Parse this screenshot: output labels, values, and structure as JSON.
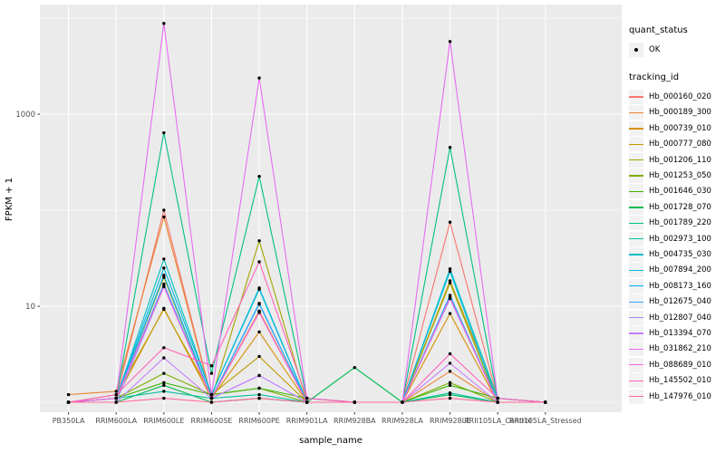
{
  "axes": {
    "x_title": "sample_name",
    "y_title": "FPKM + 1",
    "y_tick_labels": [
      "1000",
      "10"
    ]
  },
  "legend": {
    "quant_status_title": "quant_status",
    "quant_status_items": [
      {
        "label": "OK"
      }
    ],
    "tracking_title": "tracking_id"
  },
  "colors": {
    "panel_bg": "#EBEBEB",
    "grid": "#FFFFFF",
    "legend_key_bg": "#F2F2F2",
    "point": "#000000",
    "tick_label": "#4D4D4D",
    "tick_mark": "#333333"
  },
  "chart_data": {
    "type": "line",
    "title": "",
    "xlabel": "sample_name",
    "ylabel": "FPKM + 1",
    "y_scale": "log10",
    "y_range": [
      1,
      14000
    ],
    "y_major_ticks": [
      10,
      1000
    ],
    "y_major_tick_labels": [
      "10",
      "1000"
    ],
    "y_minor_ticks": [
      1,
      100,
      10000
    ],
    "grid": "on",
    "legend_position": "right",
    "point_marker": "filled-circle",
    "categories": [
      "PB350LA",
      "RRIM600LA",
      "RRIM600LE",
      "RRIM600SE",
      "RRIM600PE",
      "RRIM901LA",
      "RRIM928BA",
      "RRIM928LA",
      "RRIM928LE",
      "RRII105LA_Control",
      "RRII105LA_Stressed"
    ],
    "quant_status_all_points": "OK",
    "series": [
      {
        "name": "Hb_000160_020",
        "color": "#F8766D",
        "values": [
          1,
          1.1,
          100,
          1.1,
          8.7,
          1,
          1,
          1,
          75,
          1.1,
          1
        ]
      },
      {
        "name": "Hb_000189_300",
        "color": "#EA8331",
        "values": [
          1.2,
          1.3,
          85,
          1.1,
          8.9,
          1,
          1,
          1,
          2.1,
          1,
          1
        ]
      },
      {
        "name": "Hb_000739_010",
        "color": "#D89000",
        "values": [
          1,
          1.1,
          9.5,
          1.1,
          5.4,
          1,
          1,
          1,
          8.4,
          1,
          1
        ]
      },
      {
        "name": "Hb_000777_080",
        "color": "#C09B00",
        "values": [
          1,
          1.2,
          9.3,
          1.2,
          3,
          1,
          1,
          1,
          18.4,
          1.1,
          1
        ]
      },
      {
        "name": "Hb_001206_110",
        "color": "#A3A500",
        "values": [
          1,
          1.1,
          20,
          1.1,
          48,
          1,
          1,
          1,
          17.5,
          1,
          1
        ]
      },
      {
        "name": "Hb_001253_050",
        "color": "#7CAE00",
        "values": [
          1,
          1.1,
          2,
          1.2,
          1.4,
          1,
          1,
          1,
          1.6,
          1,
          1
        ]
      },
      {
        "name": "Hb_001646_030",
        "color": "#39B600",
        "values": [
          1,
          1.1,
          1.6,
          1.2,
          1.4,
          1.1,
          1,
          1,
          1.5,
          1.1,
          1
        ]
      },
      {
        "name": "Hb_001728_070",
        "color": "#00BB4E",
        "values": [
          1,
          1,
          1.5,
          1,
          1.1,
          1,
          2.3,
          1,
          1.2,
          1,
          1
        ]
      },
      {
        "name": "Hb_001789_220",
        "color": "#00C087",
        "values": [
          1,
          1.1,
          640,
          2,
          225,
          1.1,
          1,
          1,
          450,
          1.1,
          1
        ]
      },
      {
        "name": "Hb_002973_100",
        "color": "#00C1A3",
        "values": [
          1,
          1.1,
          1.3,
          1.1,
          1.2,
          1,
          1,
          1,
          1.25,
          1,
          1
        ]
      },
      {
        "name": "Hb_004735_030",
        "color": "#00BFC4",
        "values": [
          1,
          1.1,
          31,
          1.2,
          15,
          1,
          1,
          1,
          24.5,
          1.1,
          1
        ]
      },
      {
        "name": "Hb_007894_200",
        "color": "#00BAE0",
        "values": [
          1,
          1.1,
          25,
          1.2,
          15.5,
          1,
          1,
          1,
          23,
          1,
          1
        ]
      },
      {
        "name": "Hb_008173_160",
        "color": "#00B0F6",
        "values": [
          1,
          1.1,
          21,
          1.1,
          10.7,
          1,
          1,
          1,
          13,
          1,
          1
        ]
      },
      {
        "name": "Hb_012675_040",
        "color": "#35A2FF",
        "values": [
          1,
          1.1,
          17,
          1.1,
          10.5,
          1,
          1,
          1,
          12.5,
          1,
          1
        ]
      },
      {
        "name": "Hb_012807_040",
        "color": "#9590FF",
        "values": [
          1,
          1,
          16,
          1.1,
          1.9,
          1,
          1,
          1,
          12,
          1,
          1
        ]
      },
      {
        "name": "Hb_013394_070",
        "color": "#C77CFF",
        "values": [
          1,
          1,
          2.9,
          1.1,
          1.9,
          1,
          1,
          1,
          2.55,
          1,
          1
        ]
      },
      {
        "name": "Hb_031862_210",
        "color": "#E76BF3",
        "values": [
          1,
          1.1,
          8800,
          1.2,
          2380,
          1.1,
          1,
          1,
          5700,
          1.1,
          1
        ]
      },
      {
        "name": "Hb_088689_010",
        "color": "#FA62DB",
        "values": [
          1,
          1.1,
          16,
          1.1,
          8.6,
          1,
          1,
          1,
          12.2,
          1,
          1
        ]
      },
      {
        "name": "Hb_145502_010",
        "color": "#FF62BC",
        "values": [
          1,
          1.2,
          3.7,
          2.4,
          29,
          1.1,
          1,
          1,
          3.2,
          1.1,
          1
        ]
      },
      {
        "name": "Hb_147976_010",
        "color": "#FF6A98",
        "values": [
          1,
          1,
          1.1,
          1,
          1.1,
          1,
          1,
          1,
          1.1,
          1,
          1
        ]
      }
    ]
  }
}
